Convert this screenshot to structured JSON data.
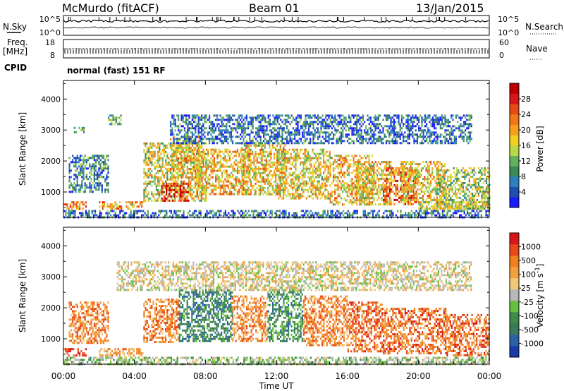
{
  "header": {
    "station": "McMurdo (fitACF)",
    "beam": "Beam 01",
    "date": "13/Jan/2015"
  },
  "params": {
    "nsky_label": "N.Sky",
    "nsearch_label": "N.Search",
    "freq_label_1": "Freq.",
    "freq_label_2": "[MHz]",
    "nave_label": "Nave",
    "cpid_label": "CPID",
    "cpid_value": "normal (fast) 151 RF",
    "noise_ticks": [
      "10^5",
      "10^0"
    ],
    "freq_ticks": [
      "18",
      "8"
    ],
    "nave_ticks": [
      "60",
      "0"
    ]
  },
  "x_axis": {
    "label": "Time UT",
    "ticks": [
      "00:00",
      "04:00",
      "08:00",
      "12:00",
      "16:00",
      "20:00",
      "00:00"
    ]
  },
  "chart_data": [
    {
      "type": "heatmap",
      "quantity": "Power",
      "ylabel": "Slant Range [km]",
      "yticks": [
        1000,
        2000,
        3000,
        4000
      ],
      "ylim": [
        180,
        4600
      ],
      "x_range_hours": [
        0,
        24
      ],
      "colorbar": {
        "label": "Power [dB]",
        "ticks": [
          "4",
          "8",
          "12",
          "16",
          "20",
          "24",
          "28"
        ],
        "bins": [
          "#1a1aff",
          "#1f4fb0",
          "#2c80c0",
          "#3d8a57",
          "#63b05e",
          "#b8d84a",
          "#f0d020",
          "#f6a020",
          "#f07818",
          "#e84a14",
          "#d81818",
          "#c00000"
        ]
      },
      "regions": [
        {
          "t0": 0.0,
          "t1": 1.3,
          "r0": 450,
          "r1": 700,
          "level": 0.7
        },
        {
          "t0": 2.0,
          "t1": 3.3,
          "r0": 450,
          "r1": 700,
          "level": 0.65
        },
        {
          "t0": 3.5,
          "t1": 4.5,
          "r0": 450,
          "r1": 700,
          "level": 0.6
        },
        {
          "t0": 0.3,
          "t1": 2.5,
          "r0": 1000,
          "r1": 2200,
          "level": 0.25
        },
        {
          "t0": 0.5,
          "t1": 1.2,
          "r0": 2900,
          "r1": 3100,
          "level": 0.4
        },
        {
          "t0": 2.5,
          "t1": 3.2,
          "r0": 3200,
          "r1": 3500,
          "level": 0.35
        },
        {
          "t0": 4.5,
          "t1": 8.0,
          "r0": 700,
          "r1": 2600,
          "level": 0.5
        },
        {
          "t0": 5.5,
          "t1": 7.0,
          "r0": 700,
          "r1": 1300,
          "level": 0.85
        },
        {
          "t0": 6.0,
          "t1": 7.8,
          "r0": 1500,
          "r1": 2800,
          "level": 0.55
        },
        {
          "t0": 7.5,
          "t1": 10.5,
          "r0": 900,
          "r1": 2400,
          "level": 0.6
        },
        {
          "t0": 10.0,
          "t1": 12.5,
          "r0": 900,
          "r1": 2600,
          "level": 0.55
        },
        {
          "t0": 12.0,
          "t1": 15.0,
          "r0": 800,
          "r1": 2400,
          "level": 0.55
        },
        {
          "t0": 15.0,
          "t1": 17.5,
          "r0": 600,
          "r1": 2200,
          "level": 0.6
        },
        {
          "t0": 16.5,
          "t1": 18.5,
          "r0": 600,
          "r1": 2000,
          "level": 0.55
        },
        {
          "t0": 18.0,
          "t1": 20.0,
          "r0": 600,
          "r1": 1800,
          "level": 0.75
        },
        {
          "t0": 19.0,
          "t1": 21.5,
          "r0": 700,
          "r1": 2000,
          "level": 0.55
        },
        {
          "t0": 21.0,
          "t1": 24.0,
          "r0": 500,
          "r1": 1800,
          "level": 0.45
        },
        {
          "t0": 20.0,
          "t1": 24.0,
          "r0": 450,
          "r1": 700,
          "level": 0.5
        },
        {
          "t0": 0.0,
          "t1": 24.0,
          "r0": 200,
          "r1": 420,
          "level": 0.2
        },
        {
          "t0": 6.0,
          "t1": 23.0,
          "r0": 2600,
          "r1": 3500,
          "level": 0.2
        }
      ]
    },
    {
      "type": "heatmap",
      "quantity": "Velocity",
      "ylabel": "Slant Range [km]",
      "yticks": [
        1000,
        2000,
        3000,
        4000
      ],
      "ylim": [
        180,
        4600
      ],
      "x_range_hours": [
        0,
        24
      ],
      "colorbar": {
        "label": "Velocity [m s^-1]",
        "ticks": [
          "1000",
          "500",
          "100",
          "25",
          "-25",
          "-100",
          "-500",
          "-1000"
        ],
        "bins": [
          "#1a3aa8",
          "#2a60a8",
          "#3a7a5a",
          "#3e8a4a",
          "#66c040",
          "#b8b8b8",
          "#f0c878",
          "#f0a040",
          "#f08020",
          "#e84818",
          "#d81818"
        ]
      },
      "regions": [
        {
          "t0": 0.0,
          "t1": 1.3,
          "r0": 450,
          "r1": 700,
          "level": 0.9
        },
        {
          "t0": 2.0,
          "t1": 4.5,
          "r0": 450,
          "r1": 700,
          "level": 0.7
        },
        {
          "t0": 0.3,
          "t1": 2.5,
          "r0": 900,
          "r1": 2200,
          "level": 0.75
        },
        {
          "t0": 4.5,
          "t1": 6.5,
          "r0": 900,
          "r1": 2300,
          "level": 0.75
        },
        {
          "t0": 6.5,
          "t1": 9.5,
          "r0": 900,
          "r1": 2600,
          "level": 0.25
        },
        {
          "t0": 9.5,
          "t1": 11.5,
          "r0": 900,
          "r1": 2400,
          "level": 0.75
        },
        {
          "t0": 11.5,
          "t1": 13.5,
          "r0": 900,
          "r1": 2600,
          "level": 0.3
        },
        {
          "t0": 13.5,
          "t1": 16.0,
          "r0": 800,
          "r1": 2400,
          "level": 0.75
        },
        {
          "t0": 16.0,
          "t1": 18.0,
          "r0": 600,
          "r1": 2200,
          "level": 0.8
        },
        {
          "t0": 18.0,
          "t1": 21.5,
          "r0": 500,
          "r1": 2000,
          "level": 0.8
        },
        {
          "t0": 21.5,
          "t1": 24.0,
          "r0": 500,
          "r1": 1800,
          "level": 0.8
        },
        {
          "t0": 0.0,
          "t1": 24.0,
          "r0": 200,
          "r1": 420,
          "level": 0.45
        },
        {
          "t0": 3.0,
          "t1": 23.0,
          "r0": 2600,
          "r1": 3500,
          "level": 0.55
        }
      ]
    }
  ]
}
